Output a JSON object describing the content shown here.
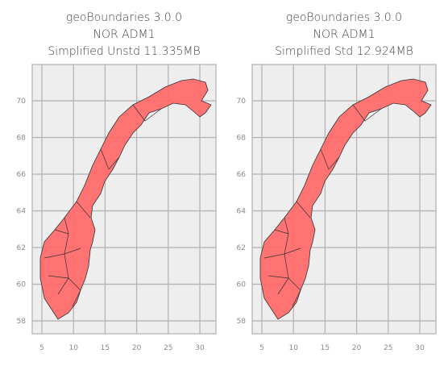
{
  "chart_data": [
    {
      "type": "map",
      "title": [
        "geoBoundaries 3.0.0",
        "NOR ADM1",
        "Simplified Unstd 11.335MB"
      ],
      "xlim": [
        3.47,
        32.55
      ],
      "ylim": [
        57.3,
        71.98
      ],
      "xticks": [
        5,
        10,
        15,
        20,
        25,
        30
      ],
      "yticks": [
        58,
        60,
        62,
        64,
        66,
        68,
        70
      ],
      "grid": true,
      "color": "#ff6b6b"
    },
    {
      "type": "map",
      "title": [
        "geoBoundaries 3.0.0",
        "NOR ADM1",
        "Simplified Std 12.924MB"
      ],
      "xlim": [
        3.47,
        32.55
      ],
      "ylim": [
        57.3,
        71.98
      ],
      "xticks": [
        5,
        10,
        15,
        20,
        25,
        30
      ],
      "yticks": [
        58,
        60,
        62,
        64,
        66,
        68,
        70
      ],
      "grid": true,
      "color": "#ff6b6b"
    }
  ]
}
